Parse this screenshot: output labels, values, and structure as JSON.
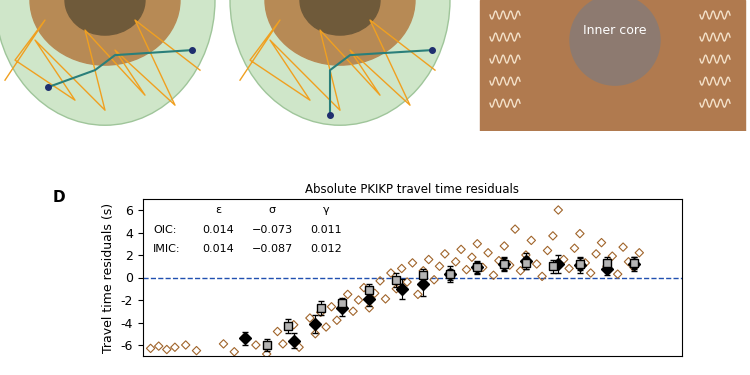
{
  "diagram": {
    "label": "Inner core"
  },
  "panel_label": "D",
  "chart_data": {
    "type": "scatter",
    "title": "Absolute PKIKP travel time residuals",
    "y_label": "Travel time residuals (s)",
    "xlim": [
      0,
      100
    ],
    "ylim": [
      -7,
      7
    ],
    "yticks": [
      -6,
      -4,
      -2,
      0,
      2,
      4,
      6
    ],
    "tick_labels": "y",
    "hline": 0,
    "table": {
      "columns": [
        "ε",
        "σ",
        "γ"
      ],
      "rows": [
        [
          "OIC:",
          "0.014",
          "−0.073",
          "0.011"
        ],
        [
          "IMIC:",
          "0.014",
          "−0.087",
          "0.012"
        ]
      ]
    },
    "series": [
      {
        "type": "scatter",
        "color": "#a0642a",
        "marker": "open_diamond",
        "x": [
          1.5,
          3,
          4.5,
          6,
          8,
          10,
          15,
          17,
          19,
          21,
          23,
          25,
          26,
          28,
          29,
          31,
          32,
          33,
          34,
          35,
          36,
          37,
          38,
          39,
          40,
          41,
          42,
          43,
          44,
          45,
          46,
          47,
          48,
          49,
          50,
          51,
          52,
          53,
          54,
          55,
          56,
          57,
          58,
          59,
          60,
          61,
          62,
          63,
          64,
          65,
          66,
          67,
          68,
          69,
          70,
          71,
          72,
          73,
          74,
          75,
          76,
          77,
          78,
          79,
          80,
          81,
          82,
          83,
          84,
          85,
          86,
          87,
          88,
          89,
          90,
          91,
          92
        ],
        "values": [
          -6.3,
          -6.1,
          -6.4,
          -6.2,
          -6.0,
          -6.5,
          -5.9,
          -6.6,
          -5.3,
          -6.0,
          -6.8,
          -4.8,
          -5.9,
          -4.2,
          -6.2,
          -3.6,
          -5.0,
          -3.1,
          -4.4,
          -2.6,
          -3.8,
          -2.2,
          -1.5,
          -3.0,
          -2.0,
          -0.9,
          -2.7,
          -1.4,
          -0.3,
          -1.9,
          0.4,
          -1.0,
          0.8,
          -0.4,
          1.3,
          -1.5,
          0.6,
          1.6,
          -0.2,
          1.0,
          2.1,
          0.3,
          1.4,
          2.5,
          0.7,
          1.8,
          3.0,
          0.9,
          2.2,
          0.2,
          1.5,
          2.8,
          1.1,
          4.3,
          0.6,
          2.0,
          3.3,
          1.2,
          0.1,
          2.4,
          3.7,
          6.0,
          1.6,
          0.8,
          2.6,
          3.9,
          1.3,
          0.4,
          2.1,
          3.1,
          1.0,
          1.9,
          0.3,
          2.7,
          1.4,
          0.9,
          2.2
        ]
      },
      {
        "type": "errorbar",
        "color": "#000000",
        "marker": "diamond",
        "x": [
          19,
          28,
          32,
          37,
          42,
          48,
          52,
          57,
          62,
          67,
          71,
          77,
          81,
          86,
          91
        ],
        "values": [
          -5.4,
          -5.6,
          -4.1,
          -2.7,
          -1.9,
          -1.0,
          -0.6,
          0.3,
          0.9,
          1.2,
          1.5,
          1.2,
          1.1,
          0.8,
          1.2
        ],
        "errors": [
          0.6,
          0.7,
          0.8,
          0.7,
          0.6,
          0.9,
          1.0,
          0.7,
          0.6,
          0.6,
          0.7,
          0.8,
          0.7,
          0.6,
          0.6
        ]
      },
      {
        "type": "errorbar",
        "color": "#b4b4b4",
        "marker": "square",
        "x": [
          23,
          27,
          33,
          37,
          42,
          47,
          52,
          57,
          62,
          67,
          71,
          76,
          81,
          86,
          91
        ],
        "values": [
          -6.0,
          -4.3,
          -2.7,
          -2.3,
          -1.1,
          -0.2,
          0.2,
          0.3,
          0.9,
          1.2,
          1.3,
          1.0,
          1.2,
          1.3,
          1.3
        ],
        "errors": [
          0.5,
          0.6,
          0.6,
          0.5,
          0.5,
          0.6,
          0.6,
          0.5,
          0.5,
          0.5,
          0.5,
          0.6,
          0.5,
          0.5,
          0.5
        ]
      }
    ]
  }
}
